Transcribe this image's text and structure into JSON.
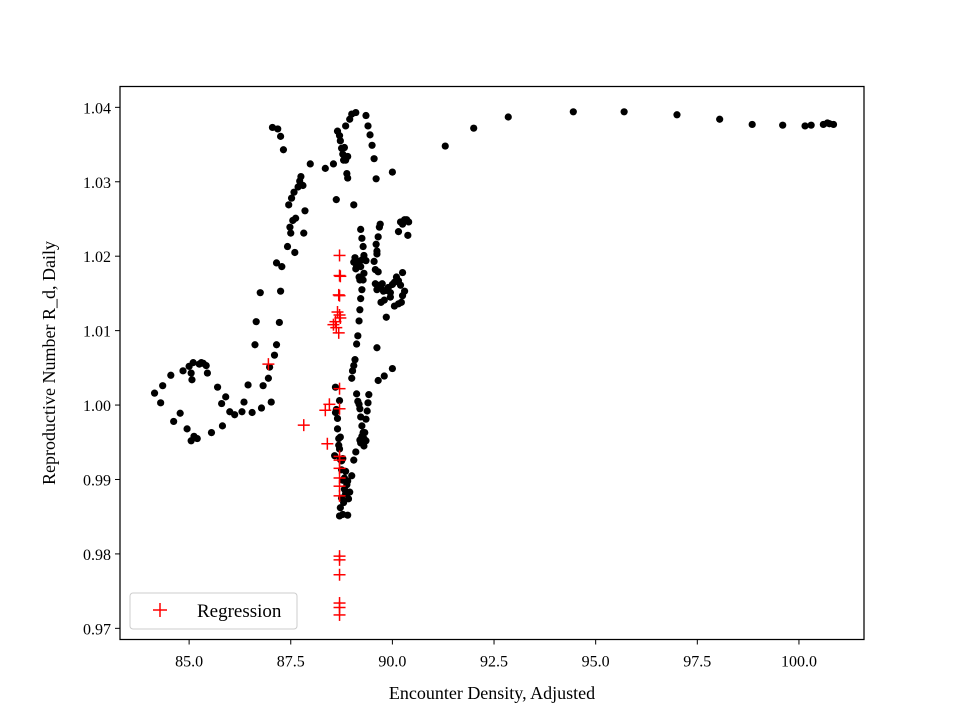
{
  "chart_data": {
    "type": "scatter",
    "title": "",
    "xlabel": "Encounter Density, Adjusted",
    "ylabel": "Reproductive Number R_d, Daily",
    "xlim": [
      83.3,
      101.6
    ],
    "ylim": [
      0.9685,
      1.0428
    ],
    "xticks": [
      85.0,
      87.5,
      90.0,
      92.5,
      95.0,
      97.5,
      100.0
    ],
    "xtick_labels": [
      "85.0",
      "87.5",
      "90.0",
      "92.5",
      "95.0",
      "97.5",
      "100.0"
    ],
    "yticks": [
      0.97,
      0.98,
      0.99,
      1.0,
      1.01,
      1.02,
      1.03,
      1.04
    ],
    "ytick_labels": [
      "0.97",
      "0.98",
      "0.99",
      "1.00",
      "1.01",
      "1.02",
      "1.03",
      "1.04"
    ],
    "grid": false,
    "legend_position": "lower-left",
    "colors": {
      "observed": "#000000",
      "regression": "#ff0000",
      "frame": "#000000"
    },
    "series": [
      {
        "marker": "dot",
        "color": "#000000",
        "points": [
          [
            84.15,
            1.0016
          ],
          [
            84.3,
            1.0003
          ],
          [
            84.35,
            1.0026
          ],
          [
            84.55,
            1.004
          ],
          [
            84.62,
            0.9978
          ],
          [
            84.78,
            0.9989
          ],
          [
            84.85,
            1.0046
          ],
          [
            84.95,
            0.9968
          ],
          [
            85.0,
            1.0052
          ],
          [
            85.05,
            0.9952
          ],
          [
            85.05,
            1.0043
          ],
          [
            85.07,
            1.0034
          ],
          [
            85.1,
            1.0057
          ],
          [
            85.12,
            0.9958
          ],
          [
            85.2,
            0.9955
          ],
          [
            85.25,
            1.0055
          ],
          [
            85.3,
            1.0057
          ],
          [
            85.35,
            1.0056
          ],
          [
            85.42,
            1.0053
          ],
          [
            85.45,
            1.0043
          ],
          [
            85.55,
            0.9963
          ],
          [
            85.7,
            1.0024
          ],
          [
            85.8,
            1.0002
          ],
          [
            85.82,
            0.9972
          ],
          [
            85.9,
            1.0011
          ],
          [
            86.0,
            0.9991
          ],
          [
            86.12,
            0.9987
          ],
          [
            86.3,
            0.9991
          ],
          [
            86.35,
            1.0004
          ],
          [
            86.45,
            1.0027
          ],
          [
            86.55,
            0.999
          ],
          [
            86.62,
            1.0081
          ],
          [
            86.65,
            1.0112
          ],
          [
            86.75,
            1.0151
          ],
          [
            86.78,
            0.9996
          ],
          [
            86.82,
            1.0026
          ],
          [
            86.95,
            1.0036
          ],
          [
            86.98,
            1.0051
          ],
          [
            87.02,
            1.0004
          ],
          [
            87.05,
            1.0373
          ],
          [
            87.1,
            1.0067
          ],
          [
            87.15,
            1.0081
          ],
          [
            87.15,
            1.0191
          ],
          [
            87.18,
            1.0371
          ],
          [
            87.22,
            1.0111
          ],
          [
            87.25,
            1.0153
          ],
          [
            87.25,
            1.0361
          ],
          [
            87.28,
            1.0186
          ],
          [
            87.32,
            1.0343
          ],
          [
            87.42,
            1.0213
          ],
          [
            87.45,
            1.0269
          ],
          [
            87.48,
            1.0239
          ],
          [
            87.5,
            1.0231
          ],
          [
            87.52,
            1.0278
          ],
          [
            87.55,
            1.0248
          ],
          [
            87.58,
            1.0286
          ],
          [
            87.6,
            1.0205
          ],
          [
            87.62,
            1.0251
          ],
          [
            87.68,
            1.0293
          ],
          [
            87.72,
            1.0301
          ],
          [
            87.75,
            1.0307
          ],
          [
            87.8,
            1.0295
          ],
          [
            87.82,
            1.0231
          ],
          [
            87.85,
            1.0261
          ],
          [
            87.98,
            1.0324
          ],
          [
            88.35,
            1.0318
          ],
          [
            88.55,
            1.0324
          ],
          [
            88.58,
            0.9932
          ],
          [
            88.62,
            1.0276
          ],
          [
            88.65,
            1.0368
          ],
          [
            88.7,
            1.0362
          ],
          [
            88.72,
            1.0355
          ],
          [
            88.75,
            1.0345
          ],
          [
            88.78,
            1.0337
          ],
          [
            88.7,
            0.9851
          ],
          [
            88.72,
            0.9862
          ],
          [
            88.75,
            0.9875
          ],
          [
            88.78,
            0.9853
          ],
          [
            88.8,
            0.9869
          ],
          [
            88.82,
            0.9887
          ],
          [
            88.85,
            0.9881
          ],
          [
            88.88,
            0.9893
          ],
          [
            88.9,
            0.9852
          ],
          [
            88.92,
            0.9874
          ],
          [
            88.8,
            1.0329
          ],
          [
            88.82,
            1.0346
          ],
          [
            88.85,
            1.0329
          ],
          [
            88.85,
            1.0375
          ],
          [
            88.88,
            1.0311
          ],
          [
            88.9,
            1.0334
          ],
          [
            88.9,
            1.0305
          ],
          [
            88.95,
            1.0384
          ],
          [
            89.0,
            1.0391
          ],
          [
            89.05,
            1.0269
          ],
          [
            89.1,
            1.0393
          ],
          [
            88.6,
            0.999
          ],
          [
            88.6,
            1.0024
          ],
          [
            88.62,
            0.9994
          ],
          [
            88.65,
            0.9982
          ],
          [
            88.68,
            0.9955
          ],
          [
            88.7,
            0.9941
          ],
          [
            88.72,
            0.9927
          ],
          [
            88.75,
            0.9913
          ],
          [
            88.78,
            0.9899
          ],
          [
            88.82,
            0.9902
          ],
          [
            88.85,
            0.9911
          ],
          [
            88.9,
            0.9898
          ],
          [
            88.95,
            0.9883
          ],
          [
            89.0,
            0.9905
          ],
          [
            89.05,
            0.9926
          ],
          [
            89.1,
            0.9937
          ],
          [
            88.65,
            0.9968
          ],
          [
            88.7,
            1.0006
          ],
          [
            88.68,
            0.9946
          ],
          [
            88.72,
            0.9957
          ],
          [
            88.75,
            0.9925
          ],
          [
            88.78,
            0.9928
          ],
          [
            89.0,
            1.0036
          ],
          [
            89.02,
            1.0046
          ],
          [
            89.05,
            1.0053
          ],
          [
            89.08,
            1.0061
          ],
          [
            89.12,
            1.0082
          ],
          [
            89.15,
            1.0093
          ],
          [
            89.18,
            1.0113
          ],
          [
            89.2,
            1.0128
          ],
          [
            89.22,
            1.0143
          ],
          [
            89.25,
            1.0155
          ],
          [
            89.28,
            1.0168
          ],
          [
            89.3,
            1.0177
          ],
          [
            89.05,
            1.0192
          ],
          [
            89.08,
            1.0198
          ],
          [
            89.1,
            1.0183
          ],
          [
            89.12,
            1.0186
          ],
          [
            89.15,
            1.0193
          ],
          [
            89.18,
            1.0172
          ],
          [
            89.2,
            1.0168
          ],
          [
            89.22,
            1.0186
          ],
          [
            89.25,
            1.0195
          ],
          [
            89.3,
            1.0201
          ],
          [
            89.35,
            1.0194
          ],
          [
            89.22,
            1.0236
          ],
          [
            89.25,
            1.0224
          ],
          [
            89.28,
            1.0213
          ],
          [
            89.12,
            1.0015
          ],
          [
            89.15,
            1.0005
          ],
          [
            89.18,
            1.0001
          ],
          [
            89.2,
            0.9995
          ],
          [
            89.22,
            0.9984
          ],
          [
            89.25,
            0.9972
          ],
          [
            89.28,
            0.9963
          ],
          [
            89.3,
            0.9955
          ],
          [
            89.2,
            0.9953
          ],
          [
            89.22,
            0.9949
          ],
          [
            89.25,
            0.9958
          ],
          [
            89.3,
            0.9945
          ],
          [
            89.35,
            0.9952
          ],
          [
            89.32,
            0.9963
          ],
          [
            89.35,
            0.9981
          ],
          [
            89.38,
            0.9992
          ],
          [
            89.4,
            1.0003
          ],
          [
            89.42,
            1.0014
          ],
          [
            89.35,
            1.0389
          ],
          [
            89.4,
            1.0375
          ],
          [
            89.45,
            1.0363
          ],
          [
            89.5,
            1.0349
          ],
          [
            89.55,
            1.0331
          ],
          [
            89.6,
            1.0304
          ],
          [
            89.55,
            1.0193
          ],
          [
            89.58,
            1.0182
          ],
          [
            89.6,
            1.0216
          ],
          [
            89.62,
            1.0207
          ],
          [
            89.65,
            1.0226
          ],
          [
            89.68,
            1.0239
          ],
          [
            89.7,
            1.0243
          ],
          [
            89.65,
            1.0179
          ],
          [
            89.58,
            1.0163
          ],
          [
            89.62,
            1.0155
          ],
          [
            89.68,
            1.0161
          ],
          [
            89.72,
            1.0158
          ],
          [
            89.75,
            1.0163
          ],
          [
            89.78,
            1.0153
          ],
          [
            89.85,
            1.0154
          ],
          [
            89.9,
            1.0158
          ],
          [
            89.95,
            1.0151
          ],
          [
            90.0,
            1.0162
          ],
          [
            90.05,
            1.0165
          ],
          [
            90.1,
            1.0172
          ],
          [
            90.15,
            1.0167
          ],
          [
            90.2,
            1.0161
          ],
          [
            90.25,
            1.0178
          ],
          [
            89.62,
            1.0203
          ],
          [
            89.72,
            1.0138
          ],
          [
            89.8,
            1.0141
          ],
          [
            89.95,
            1.0145
          ],
          [
            90.05,
            1.0133
          ],
          [
            90.15,
            1.0136
          ],
          [
            90.22,
            1.0138
          ],
          [
            90.25,
            1.0147
          ],
          [
            90.3,
            1.0153
          ],
          [
            89.62,
            1.0077
          ],
          [
            89.65,
            1.0033
          ],
          [
            89.8,
            1.0039
          ],
          [
            89.85,
            1.0118
          ],
          [
            90.0,
            1.0049
          ],
          [
            90.0,
            1.0313
          ],
          [
            90.15,
            1.0233
          ],
          [
            90.2,
            1.0246
          ],
          [
            90.25,
            1.0243
          ],
          [
            90.3,
            1.0249
          ],
          [
            90.35,
            1.0249
          ],
          [
            90.38,
            1.0228
          ],
          [
            90.4,
            1.0246
          ],
          [
            91.3,
            1.0348
          ],
          [
            92.0,
            1.0372
          ],
          [
            92.85,
            1.0387
          ],
          [
            94.45,
            1.0394
          ],
          [
            95.7,
            1.0394
          ],
          [
            97.0,
            1.039
          ],
          [
            98.05,
            1.0384
          ],
          [
            98.85,
            1.0377
          ],
          [
            99.6,
            1.0376
          ],
          [
            100.15,
            1.0375
          ],
          [
            100.3,
            1.0376
          ],
          [
            100.6,
            1.0377
          ],
          [
            100.7,
            1.0379
          ],
          [
            100.75,
            1.0378
          ],
          [
            100.85,
            1.0377
          ]
        ]
      },
      {
        "name": "Regression",
        "marker": "plus",
        "color": "#ff0000",
        "points": [
          [
            86.95,
            1.0055
          ],
          [
            87.82,
            0.9973
          ],
          [
            88.35,
            0.9993
          ],
          [
            88.4,
            0.9948
          ],
          [
            88.45,
            1.0001
          ],
          [
            88.55,
            1.0108
          ],
          [
            88.6,
            1.0112
          ],
          [
            88.62,
            1.0104
          ],
          [
            88.65,
            1.0125
          ],
          [
            88.68,
            1.0148
          ],
          [
            88.7,
            1.0147
          ],
          [
            88.72,
            1.0117
          ],
          [
            88.7,
            1.0121
          ],
          [
            88.7,
            1.0201
          ],
          [
            88.7,
            1.0174
          ],
          [
            88.72,
            1.0173
          ],
          [
            88.68,
            1.0097
          ],
          [
            88.7,
            1.0022
          ],
          [
            88.7,
            0.9995
          ],
          [
            88.7,
            0.9931
          ],
          [
            88.7,
            0.9926
          ],
          [
            88.7,
            0.9915
          ],
          [
            88.7,
            0.9902
          ],
          [
            88.7,
            0.9891
          ],
          [
            88.7,
            0.9878
          ],
          [
            88.7,
            0.9797
          ],
          [
            88.7,
            0.9792
          ],
          [
            88.7,
            0.9772
          ],
          [
            88.7,
            0.9734
          ],
          [
            88.7,
            0.9728
          ],
          [
            88.7,
            0.9718
          ]
        ]
      }
    ]
  }
}
